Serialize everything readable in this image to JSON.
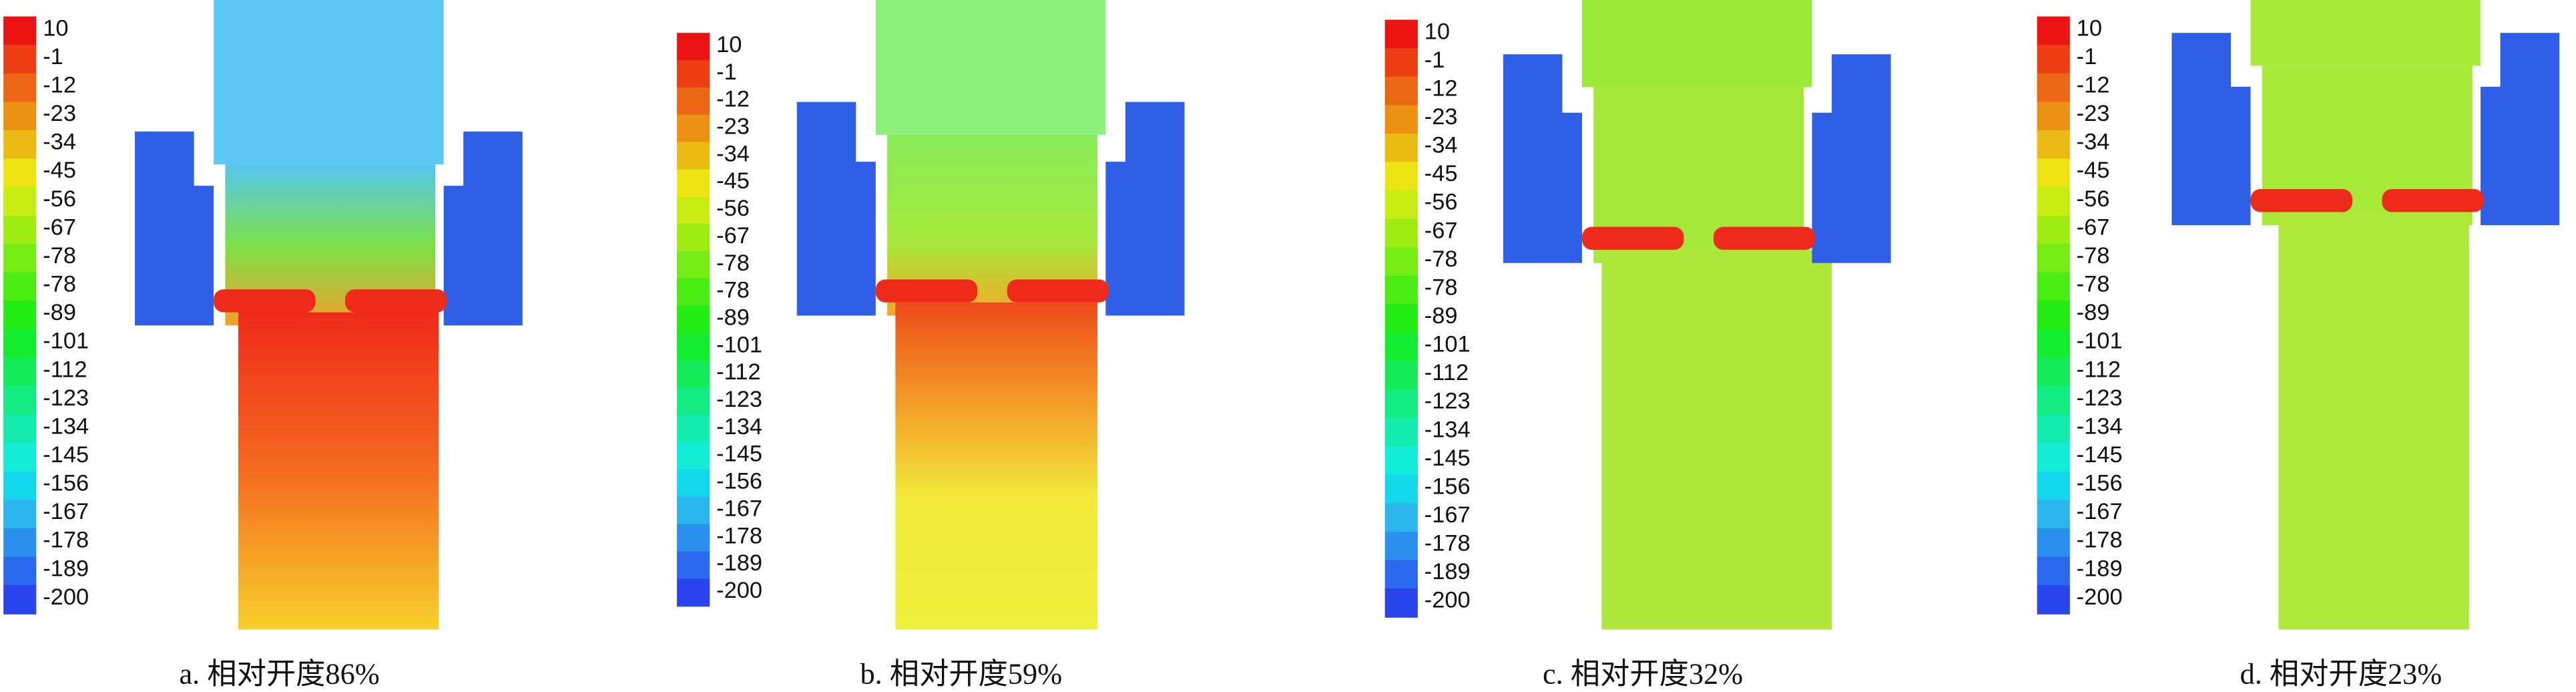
{
  "panels": [
    {
      "colorbar": [
        10,
        -1,
        -12,
        -23,
        -34,
        -45,
        -56,
        -67,
        -78,
        -78,
        -89,
        -101,
        -112,
        -123,
        -134,
        -145,
        -156,
        -167,
        -178,
        -189,
        -200
      ],
      "caption": "a. 相对开度86%"
    },
    {
      "colorbar": [
        10,
        -1,
        -12,
        -23,
        -34,
        -45,
        -56,
        -67,
        -78,
        -78,
        -89,
        -101,
        -112,
        -123,
        -134,
        -145,
        -156,
        -167,
        -178,
        -189,
        -200
      ],
      "caption": "b. 相对开度59%"
    },
    {
      "colorbar": [
        10,
        -1,
        -12,
        -23,
        -34,
        -45,
        -56,
        -67,
        -78,
        -78,
        -89,
        -101,
        -112,
        -123,
        -134,
        -145,
        -156,
        -167,
        -178,
        -189,
        -200
      ],
      "caption": "c. 相对开度32%"
    },
    {
      "colorbar": [
        10,
        -1,
        -12,
        -23,
        -34,
        -45,
        -56,
        -67,
        -78,
        -78,
        -89,
        -101,
        -112,
        -123,
        -134,
        -145,
        -156,
        -167,
        -178,
        -189,
        -200
      ],
      "caption": "d. 相对开度23%"
    }
  ]
}
